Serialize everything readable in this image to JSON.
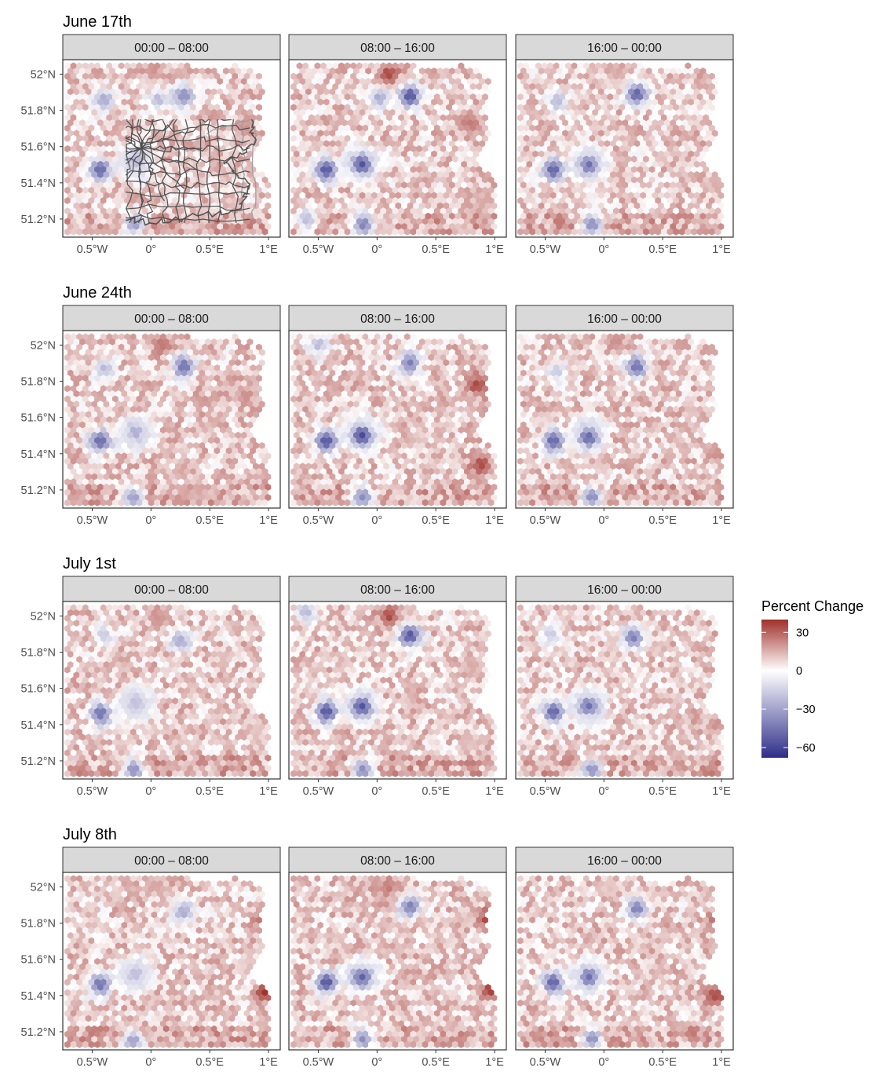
{
  "figure": {
    "rows": [
      {
        "title": "June 17th",
        "panels": [
          "00:00 – 08:00",
          "08:00 – 16:00",
          "16:00 – 00:00"
        ]
      },
      {
        "title": "June 24th",
        "panels": [
          "00:00 – 08:00",
          "08:00 – 16:00",
          "16:00 – 00:00"
        ]
      },
      {
        "title": "July 1st",
        "panels": [
          "00:00 – 08:00",
          "08:00 – 16:00",
          "16:00 – 00:00"
        ]
      },
      {
        "title": "July 8th",
        "panels": [
          "00:00 – 08:00",
          "08:00 – 16:00",
          "16:00 – 00:00"
        ]
      }
    ],
    "y_ticks": [
      "52°N",
      "51.8°N",
      "51.6°N",
      "51.4°N",
      "51.2°N"
    ],
    "y_tick_values": [
      52.0,
      51.8,
      51.6,
      51.4,
      51.2
    ],
    "x_ticks": [
      "0.5°W",
      "0°",
      "0.5°E",
      "1°E"
    ],
    "x_tick_values": [
      -0.5,
      0.0,
      0.5,
      1.0
    ],
    "legend": {
      "title": "Percent Change",
      "ticks": [
        "30",
        "0",
        "−30",
        "−60"
      ],
      "tick_values": [
        30,
        0,
        -30,
        -60
      ],
      "range": [
        -68,
        40
      ],
      "colors": {
        "low": "#2e2e8a",
        "mid": "#ffffff",
        "high": "#a0302a"
      }
    },
    "colors": {
      "strip": "#d9d9d9",
      "boundary": "#4d4d4d",
      "border": "#333333"
    }
  },
  "chart_data": {
    "type": "heatmap",
    "xlim": [
      -0.75,
      1.1
    ],
    "ylim": [
      51.1,
      52.08
    ],
    "hotspots": [
      [
        [
          [
            -0.13,
            51.52,
            -22
          ],
          [
            -0.43,
            51.47,
            -48
          ],
          [
            -0.14,
            51.17,
            -30
          ],
          [
            0.06,
            51.86,
            -20
          ],
          [
            0.28,
            51.88,
            -35
          ],
          [
            -0.4,
            51.86,
            -25
          ],
          [
            0.8,
            51.7,
            20
          ],
          [
            0.02,
            52.03,
            20
          ],
          [
            0.4,
            51.2,
            10
          ]
        ],
        [
          [
            -0.13,
            51.5,
            -55
          ],
          [
            -0.43,
            51.47,
            -55
          ],
          [
            -0.12,
            51.17,
            -40
          ],
          [
            0.28,
            51.88,
            -55
          ],
          [
            0.02,
            51.87,
            -25
          ],
          [
            0.1,
            52.0,
            35
          ],
          [
            0.8,
            51.72,
            25
          ],
          [
            0.9,
            51.3,
            15
          ],
          [
            -0.6,
            51.2,
            -20
          ]
        ],
        [
          [
            -0.13,
            51.5,
            -45
          ],
          [
            -0.43,
            51.47,
            -50
          ],
          [
            -0.1,
            51.17,
            -35
          ],
          [
            0.28,
            51.89,
            -50
          ],
          [
            -0.4,
            51.85,
            -20
          ],
          [
            0.95,
            51.4,
            15
          ],
          [
            0.1,
            52.0,
            15
          ]
        ]
      ],
      [
        [
          [
            -0.13,
            51.52,
            -25
          ],
          [
            -0.43,
            51.47,
            -48
          ],
          [
            -0.15,
            51.16,
            -30
          ],
          [
            0.28,
            51.88,
            -45
          ],
          [
            -0.4,
            51.87,
            -20
          ],
          [
            0.1,
            52.0,
            25
          ],
          [
            0.8,
            51.72,
            20
          ],
          [
            0.4,
            51.2,
            15
          ]
        ],
        [
          [
            -0.13,
            51.5,
            -58
          ],
          [
            -0.43,
            51.47,
            -55
          ],
          [
            -0.12,
            51.16,
            -35
          ],
          [
            0.28,
            51.9,
            -40
          ],
          [
            0.85,
            51.78,
            35
          ],
          [
            0.88,
            51.34,
            35
          ],
          [
            -0.5,
            52.0,
            -20
          ]
        ],
        [
          [
            -0.13,
            51.49,
            -48
          ],
          [
            -0.43,
            51.47,
            -50
          ],
          [
            -0.1,
            51.16,
            -35
          ],
          [
            0.28,
            51.88,
            -45
          ],
          [
            0.95,
            51.4,
            20
          ],
          [
            0.1,
            52.02,
            20
          ],
          [
            -0.4,
            51.85,
            -15
          ]
        ]
      ],
      [
        [
          [
            -0.13,
            51.52,
            -20
          ],
          [
            -0.43,
            51.46,
            -45
          ],
          [
            -0.15,
            51.15,
            -35
          ],
          [
            0.25,
            51.86,
            -25
          ],
          [
            -0.4,
            51.9,
            -15
          ],
          [
            0.05,
            52.0,
            20
          ],
          [
            0.9,
            51.36,
            10
          ]
        ],
        [
          [
            -0.13,
            51.5,
            -55
          ],
          [
            -0.43,
            51.47,
            -55
          ],
          [
            -0.12,
            51.15,
            -35
          ],
          [
            0.28,
            51.89,
            -55
          ],
          [
            0.1,
            52.0,
            35
          ],
          [
            -0.6,
            52.02,
            -20
          ],
          [
            0.8,
            51.72,
            15
          ],
          [
            0.8,
            51.3,
            10
          ]
        ],
        [
          [
            -0.13,
            51.5,
            -45
          ],
          [
            -0.43,
            51.47,
            -50
          ],
          [
            -0.1,
            51.15,
            -35
          ],
          [
            0.25,
            51.88,
            -40
          ],
          [
            0.95,
            51.4,
            20
          ],
          [
            -0.45,
            51.9,
            -15
          ]
        ]
      ],
      [
        [
          [
            -0.13,
            51.52,
            -20
          ],
          [
            -0.43,
            51.46,
            -45
          ],
          [
            -0.15,
            51.15,
            -30
          ],
          [
            0.98,
            51.8,
            40
          ],
          [
            0.98,
            51.42,
            40
          ],
          [
            0.28,
            51.86,
            -25
          ],
          [
            0.05,
            52.0,
            15
          ]
        ],
        [
          [
            -0.13,
            51.5,
            -50
          ],
          [
            -0.43,
            51.47,
            -55
          ],
          [
            -0.12,
            51.16,
            -35
          ],
          [
            0.98,
            51.82,
            45
          ],
          [
            0.98,
            51.44,
            40
          ],
          [
            0.28,
            51.89,
            -40
          ],
          [
            0.1,
            52.0,
            25
          ]
        ],
        [
          [
            -0.13,
            51.5,
            -45
          ],
          [
            -0.43,
            51.47,
            -50
          ],
          [
            -0.1,
            51.16,
            -35
          ],
          [
            0.98,
            51.8,
            40
          ],
          [
            0.95,
            51.4,
            35
          ],
          [
            0.28,
            51.88,
            -40
          ],
          [
            0.05,
            52.0,
            10
          ]
        ]
      ]
    ]
  }
}
